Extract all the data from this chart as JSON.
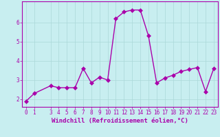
{
  "xlabel": "Windchill (Refroidissement éolien,°C)",
  "background_color": "#c8eef0",
  "line_color": "#aa00aa",
  "marker": "D",
  "x": [
    0,
    1,
    3,
    4,
    5,
    6,
    7,
    8,
    9,
    10,
    11,
    12,
    13,
    14,
    15,
    16,
    17,
    18,
    19,
    20,
    21,
    22,
    23
  ],
  "y": [
    1.9,
    2.3,
    2.7,
    2.6,
    2.6,
    2.6,
    3.6,
    2.85,
    3.15,
    3.0,
    6.2,
    6.55,
    6.65,
    6.65,
    5.3,
    2.85,
    3.1,
    3.25,
    3.45,
    3.55,
    3.65,
    2.4,
    3.6
  ],
  "xlim": [
    -0.5,
    23.5
  ],
  "ylim": [
    1.6,
    7.1
  ],
  "yticks": [
    2,
    3,
    4,
    5,
    6
  ],
  "xticks": [
    0,
    1,
    3,
    4,
    5,
    6,
    7,
    8,
    9,
    10,
    11,
    12,
    13,
    14,
    15,
    16,
    17,
    18,
    19,
    20,
    21,
    22,
    23
  ],
  "grid_color": "#aad8d8",
  "line_width": 1.0,
  "marker_size": 3,
  "font_size_xlabel": 6.5,
  "font_size_ticks": 5.5
}
